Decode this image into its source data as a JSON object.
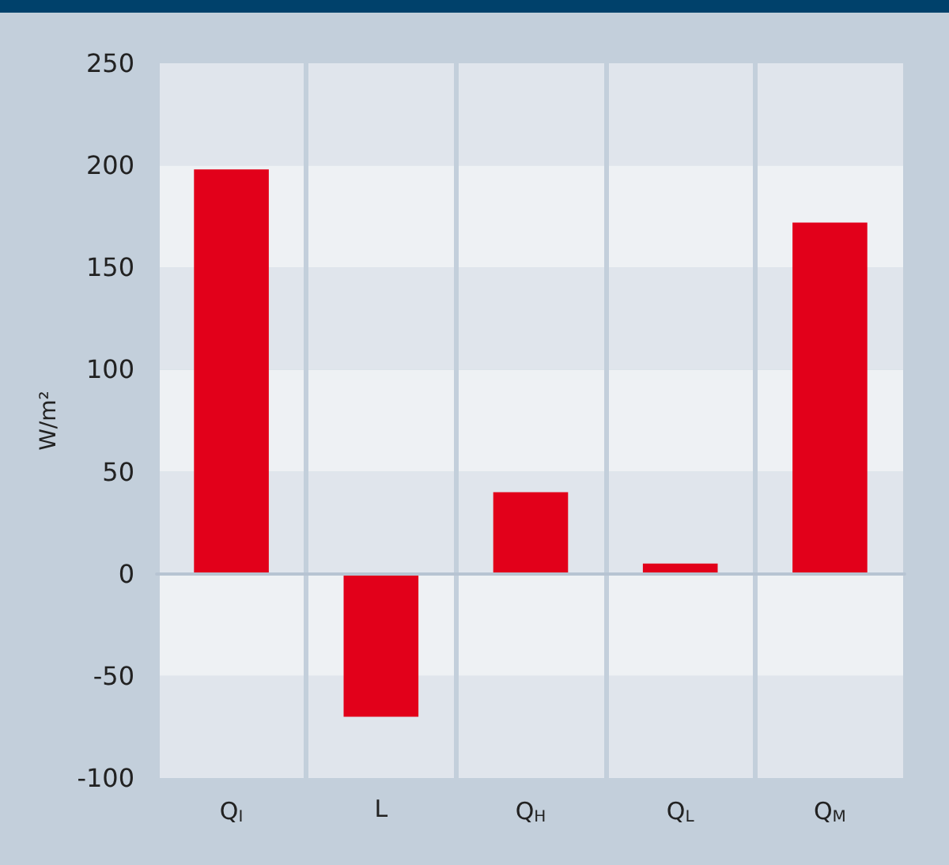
{
  "chart_data": {
    "type": "bar",
    "ylabel": "W/m²",
    "categories": [
      "Q$_{I}$",
      "L",
      "Q$_{H}$",
      "Q$_{L}$",
      "Q$_{M}$"
    ],
    "values": [
      198,
      -70,
      40,
      5,
      172
    ],
    "color": "#e2001a",
    "ylim": [
      -100,
      250
    ],
    "yticks": [
      -100,
      -50,
      0,
      50,
      100,
      150,
      200,
      250
    ],
    "grid": true
  }
}
